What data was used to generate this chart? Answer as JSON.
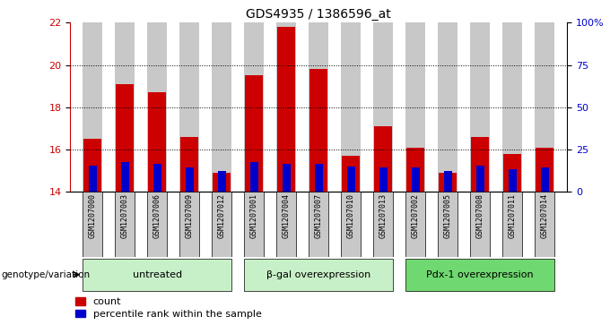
{
  "title": "GDS4935 / 1386596_at",
  "categories": [
    "GSM1207000",
    "GSM1207003",
    "GSM1207006",
    "GSM1207009",
    "GSM1207012",
    "GSM1207001",
    "GSM1207004",
    "GSM1207007",
    "GSM1207010",
    "GSM1207013",
    "GSM1207002",
    "GSM1207005",
    "GSM1207008",
    "GSM1207011",
    "GSM1207014"
  ],
  "count_values": [
    16.5,
    19.1,
    18.7,
    16.6,
    14.9,
    19.5,
    21.8,
    19.8,
    15.7,
    17.1,
    16.1,
    14.9,
    16.6,
    15.8,
    16.1
  ],
  "percentile_values": [
    15.25,
    15.4,
    15.3,
    15.15,
    15.0,
    15.4,
    15.3,
    15.3,
    15.2,
    15.15,
    15.15,
    15.0,
    15.25,
    15.05,
    15.15
  ],
  "bar_bottom": 14.0,
  "ylim_left": [
    14.0,
    22.0
  ],
  "ylim_right": [
    0,
    100
  ],
  "yticks_left": [
    14,
    16,
    18,
    20,
    22
  ],
  "yticks_right": [
    0,
    25,
    50,
    75,
    100
  ],
  "yticklabels_right": [
    "0",
    "25",
    "50",
    "75",
    "100%"
  ],
  "groups": [
    {
      "label": "untreated",
      "start": 0,
      "end": 5
    },
    {
      "label": "β-gal overexpression",
      "start": 5,
      "end": 10
    },
    {
      "label": "Pdx-1 overexpression",
      "start": 10,
      "end": 15
    }
  ],
  "group_color_light": "#C8F0C8",
  "group_color_dark": "#70D870",
  "bar_color_red": "#CC0000",
  "bar_color_blue": "#0000CC",
  "bar_width": 0.55,
  "bg_color": "#C8C8C8",
  "plot_bg": "#FFFFFF",
  "ylabel_left_color": "#CC0000",
  "ylabel_right_color": "#0000CC",
  "genotype_label": "genotype/variation",
  "legend_count": "count",
  "legend_percentile": "percentile rank within the sample",
  "grid_color": "#000000",
  "grid_yticks": [
    16,
    18,
    20
  ],
  "n_bars": 15
}
